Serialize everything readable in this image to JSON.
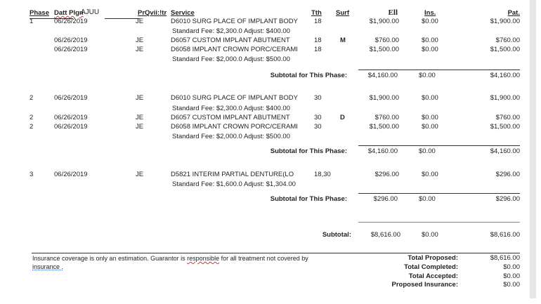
{
  "headers": {
    "phase": "Phase",
    "date": "Datt Plgn",
    "extra": "AJUU",
    "provider": "PrQvii:!tr",
    "service": "Service",
    "tooth": "Tth",
    "surf": "Surf",
    "fee": "Ell",
    "ins": "Ins.",
    "pat": "Pat."
  },
  "phases": [
    {
      "rows": [
        {
          "phase": "1",
          "date": "06/26/2019",
          "provider": "JE",
          "service": "D6010 SURG PLACE OF IMPLANT BODY",
          "tooth": "18",
          "surf": "",
          "fee": "$1,900.00",
          "ins": "$0.00",
          "pat": "$1,900.00",
          "note": "Standard Fee: $2,300.0 Adjust: $400.00"
        },
        {
          "phase": "",
          "date": "06/26/2019",
          "provider": "JE",
          "service": "D6057 CUSTOM IMPLANT ABUTMENT",
          "tooth": "18",
          "surf": "M",
          "fee": "$760.00",
          "ins": "$0.00",
          "pat": "$760.00",
          "note": ""
        },
        {
          "phase": "",
          "date": "06/26/2019",
          "provider": "JE",
          "service": "D6058 IMPLANT CROWN PORC/CERAMI",
          "tooth": "18",
          "surf": "",
          "fee": "$1,500.00",
          "ins": "$0.00",
          "pat": "$1,500.00",
          "note": "Standard Fee: $2,000.0 Adjust: $500.00"
        }
      ],
      "subtotal": {
        "label": "Subtotal for This Phase:",
        "fee": "$4,160.00",
        "ins": "$0.00",
        "pat": "$4,160.00"
      }
    },
    {
      "rows": [
        {
          "phase": "2",
          "date": "06/26/2019",
          "provider": "JE",
          "service": "D6010 SURG PLACE OF IMPLANT BODY",
          "tooth": "30",
          "surf": "",
          "fee": "$1,900.00",
          "ins": "$0.00",
          "pat": "$1,900.00",
          "note": "Standard Fee: $2,300.0 Adjust: $400.00"
        },
        {
          "phase": "2",
          "date": "06/26/2019",
          "provider": "JE",
          "service": "D6057 CUSTOM IMPLANT ABUTMENT",
          "tooth": "30",
          "surf": "D",
          "fee": "$760.00",
          "ins": "$0.00",
          "pat": "$760.00",
          "note": ""
        },
        {
          "phase": "2",
          "date": "06/26/2019",
          "provider": "JE",
          "service": "D6058 IMPLANT CROWN PORC/CERAMI",
          "tooth": "30",
          "surf": "",
          "fee": "$1,500.00",
          "ins": "$0.00",
          "pat": "$1,500.00",
          "note": "Standard Fee: $2,000.0 Adjust: $500.00"
        }
      ],
      "subtotal": {
        "label": "Subtotal for This Phase:",
        "fee": "$4,160.00",
        "ins": "$0.00",
        "pat": "$4,160.00"
      }
    },
    {
      "rows": [
        {
          "phase": "3",
          "date": "06/26/2019",
          "provider": "JE",
          "service": "D5821  INTERIM PARTIAL DENTURE(LO",
          "tooth": "18,30",
          "surf": "",
          "fee": "$296.00",
          "ins": "$0.00",
          "pat": "$296.00",
          "note": "Standard Fee: $1,600.0 Adjust: $1,304.00"
        }
      ],
      "subtotal": {
        "label": "Subtotal for This Phase:",
        "fee": "$296.00",
        "ins": "$0.00",
        "pat": "$296.00"
      }
    }
  ],
  "grand_subtotal": {
    "label": "Subtotal:",
    "fee": "$8,616.00",
    "ins": "$0.00",
    "pat": "$8,616.00"
  },
  "footer": {
    "disclaimer_a": "Insurance coverage is only an estimation. Guarantor is ",
    "disclaimer_word": "responsible",
    "disclaimer_b": " for all treatment not covered by",
    "disclaimer_line2": "insurance .",
    "totals": [
      {
        "label": "Total Proposed:",
        "value": "$8,616.00"
      },
      {
        "label": "Total Completed:",
        "value": "$0.00"
      },
      {
        "label": "Total Accepted:",
        "value": "$0.00"
      },
      {
        "label": "Proposed Insurance:",
        "value": "$0.00"
      }
    ]
  },
  "colors": {
    "text": "#222222",
    "scrollbar": "#e6e6e6"
  }
}
